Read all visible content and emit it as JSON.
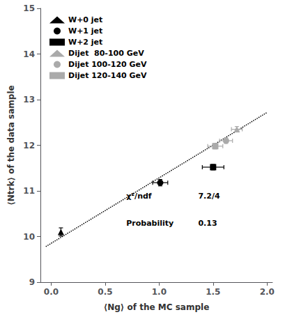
{
  "chart_data": {
    "type": "scatter",
    "xlabel": "⟨Ng⟩ of the MC sample",
    "ylabel": "⟨Ntrk⟩ of the data sample",
    "series": [
      {
        "name": "W+0 jet",
        "color": "black",
        "marker": "triangle",
        "x": [
          0.09
        ],
        "y": [
          10.1
        ],
        "xerr": [
          0.0
        ],
        "yerr": [
          0.09
        ]
      },
      {
        "name": "W+1 jet",
        "color": "black",
        "marker": "circle",
        "x": [
          1.01
        ],
        "y": [
          11.18
        ],
        "xerr": [
          0.07
        ],
        "yerr": [
          0.07
        ]
      },
      {
        "name": "W+2 jet",
        "color": "black",
        "marker": "square",
        "x": [
          1.5
        ],
        "y": [
          11.52
        ],
        "xerr": [
          0.1
        ],
        "yerr": [
          0.06
        ]
      },
      {
        "name": "Dijet  80-100 GeV",
        "color": "#aaaaaa",
        "marker": "triangle",
        "x": [
          1.72
        ],
        "y": [
          12.35
        ],
        "xerr": [
          0.05
        ],
        "yerr": [
          0.06
        ]
      },
      {
        "name": "Dijet 100-120 GeV",
        "color": "#aaaaaa",
        "marker": "circle",
        "x": [
          1.62
        ],
        "y": [
          12.1
        ],
        "xerr": [
          0.06
        ],
        "yerr": [
          0.06
        ]
      },
      {
        "name": "Dijet 120-140 GeV",
        "color": "#aaaaaa",
        "marker": "square",
        "x": [
          1.52
        ],
        "y": [
          11.98
        ],
        "xerr": [
          0.07
        ],
        "yerr": [
          0.06
        ]
      },
      {
        "type": "line",
        "color": "black",
        "line_style": "dotted",
        "x": [
          -0.05,
          2.0
        ],
        "y": [
          9.78,
          12.72
        ]
      }
    ],
    "annotations": [
      "χ²/ndf",
      "7.2/4",
      "Probability",
      "0.13"
    ],
    "xlim": [
      -0.1,
      2.05
    ],
    "ylim": [
      9.0,
      15.0
    ],
    "xticks": [
      {
        "value": 0.0,
        "label": "0.0"
      },
      {
        "value": 0.5,
        "label": "0.5"
      },
      {
        "value": 1.0,
        "label": "1.0"
      },
      {
        "value": 1.5,
        "label": "1.5"
      },
      {
        "value": 2.0,
        "label": "2.0"
      }
    ],
    "yticks": [
      9,
      10,
      11,
      12,
      13,
      14,
      15
    ],
    "grid": false,
    "legend": "upper left"
  }
}
